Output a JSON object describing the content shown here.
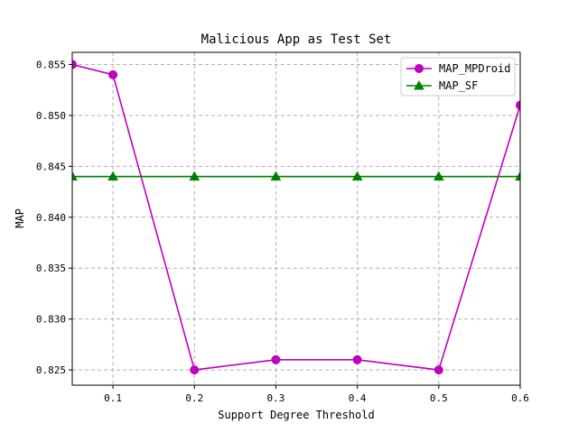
{
  "chart_data": {
    "type": "line",
    "title": "Malicious App as Test Set",
    "xlabel": "Support Degree Threshold",
    "ylabel": "MAP",
    "xlim": [
      0.05,
      0.6
    ],
    "ylim": [
      0.8235,
      0.8562
    ],
    "x_ticks": [
      0.1,
      0.2,
      0.3,
      0.4,
      0.5,
      0.6
    ],
    "x_tick_labels": [
      "0.1",
      "0.2",
      "0.3",
      "0.4",
      "0.5",
      "0.6"
    ],
    "y_ticks": [
      0.825,
      0.83,
      0.835,
      0.84,
      0.845,
      0.85,
      0.855
    ],
    "y_tick_labels": [
      "0.825",
      "0.830",
      "0.835",
      "0.840",
      "0.845",
      "0.850",
      "0.855"
    ],
    "grid": true,
    "legend_position": "top-right",
    "x": [
      0.05,
      0.1,
      0.2,
      0.3,
      0.4,
      0.5,
      0.6
    ],
    "series": [
      {
        "name": "MAP_MPDroid",
        "color": "#bf00bf",
        "marker": "circle",
        "values": [
          0.855,
          0.854,
          0.825,
          0.826,
          0.826,
          0.825,
          0.851
        ]
      },
      {
        "name": "MAP_SF",
        "color": "#008000",
        "marker": "triangle",
        "values": [
          0.844,
          0.844,
          0.844,
          0.844,
          0.844,
          0.844,
          0.844
        ]
      }
    ]
  }
}
